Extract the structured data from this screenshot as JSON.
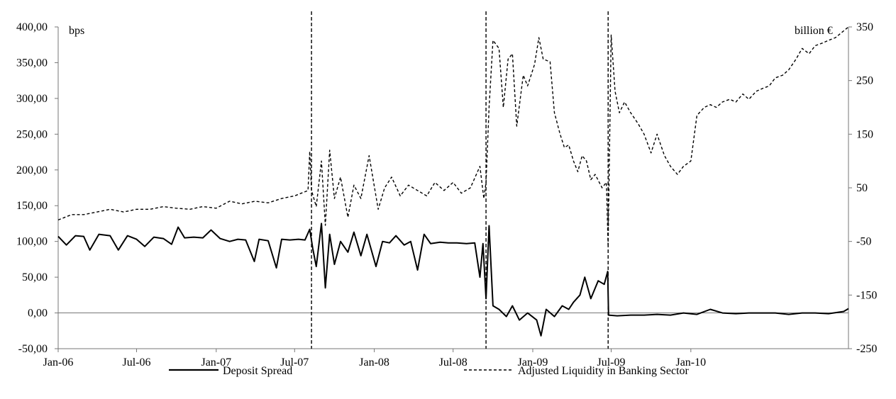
{
  "chart_data": {
    "type": "line",
    "left_axis": {
      "unit_label": "bps",
      "ylim": [
        -50,
        400
      ],
      "ticks": [
        "-50,00",
        "0,00",
        "50,00",
        "100,00",
        "150,00",
        "200,00",
        "250,00",
        "300,00",
        "350,00",
        "400,00"
      ]
    },
    "right_axis": {
      "unit_label": "billion €",
      "ylim": [
        -250,
        350
      ],
      "ticks": [
        "-250",
        "-150",
        "-50",
        "50",
        "150",
        "250",
        "350"
      ]
    },
    "x_axis": {
      "start": "2006-01-01",
      "end": "2010-12-31",
      "tick_labels": [
        {
          "label": "Jan-06",
          "date": "2006-01-01"
        },
        {
          "label": "Jul-06",
          "date": "2006-07-01"
        },
        {
          "label": "Jan-07",
          "date": "2007-01-01"
        },
        {
          "label": "Jul-07",
          "date": "2007-07-01"
        },
        {
          "label": "Jan-08",
          "date": "2008-01-01"
        },
        {
          "label": "Jul-08",
          "date": "2008-07-01"
        },
        {
          "label": "Jan-09",
          "date": "2009-01-01"
        },
        {
          "label": "Jul-09",
          "date": "2009-07-01"
        },
        {
          "label": "Jan-10",
          "date": "2010-01-01"
        }
      ]
    },
    "vertical_markers": [
      "2007-08-09",
      "2008-09-15",
      "2009-06-24"
    ],
    "series": [
      {
        "name": "Deposit Spread",
        "axis": "left",
        "style": "solid",
        "color": "#000000",
        "points": [
          [
            "2006-01-01",
            107
          ],
          [
            "2006-01-20",
            95
          ],
          [
            "2006-02-10",
            108
          ],
          [
            "2006-03-01",
            107
          ],
          [
            "2006-03-15",
            88
          ],
          [
            "2006-04-05",
            110
          ],
          [
            "2006-05-01",
            108
          ],
          [
            "2006-05-20",
            88
          ],
          [
            "2006-06-10",
            108
          ],
          [
            "2006-07-01",
            103
          ],
          [
            "2006-07-20",
            93
          ],
          [
            "2006-08-10",
            106
          ],
          [
            "2006-09-01",
            104
          ],
          [
            "2006-09-20",
            96
          ],
          [
            "2006-10-05",
            120
          ],
          [
            "2006-10-20",
            105
          ],
          [
            "2006-11-10",
            106
          ],
          [
            "2006-12-01",
            105
          ],
          [
            "2006-12-20",
            116
          ],
          [
            "2007-01-10",
            104
          ],
          [
            "2007-02-01",
            100
          ],
          [
            "2007-02-20",
            103
          ],
          [
            "2007-03-10",
            102
          ],
          [
            "2007-03-30",
            72
          ],
          [
            "2007-04-10",
            103
          ],
          [
            "2007-05-01",
            101
          ],
          [
            "2007-05-20",
            63
          ],
          [
            "2007-06-01",
            103
          ],
          [
            "2007-06-20",
            102
          ],
          [
            "2007-07-10",
            103
          ],
          [
            "2007-07-25",
            102
          ],
          [
            "2007-08-05",
            117
          ],
          [
            "2007-08-12",
            90
          ],
          [
            "2007-08-20",
            65
          ],
          [
            "2007-09-01",
            125
          ],
          [
            "2007-09-10",
            35
          ],
          [
            "2007-09-20",
            110
          ],
          [
            "2007-10-01",
            68
          ],
          [
            "2007-10-15",
            100
          ],
          [
            "2007-11-01",
            85
          ],
          [
            "2007-11-15",
            113
          ],
          [
            "2007-12-01",
            80
          ],
          [
            "2007-12-15",
            110
          ],
          [
            "2008-01-05",
            65
          ],
          [
            "2008-01-20",
            100
          ],
          [
            "2008-02-05",
            98
          ],
          [
            "2008-02-20",
            108
          ],
          [
            "2008-03-10",
            95
          ],
          [
            "2008-03-25",
            100
          ],
          [
            "2008-04-10",
            60
          ],
          [
            "2008-04-25",
            110
          ],
          [
            "2008-05-10",
            97
          ],
          [
            "2008-06-01",
            99
          ],
          [
            "2008-06-20",
            98
          ],
          [
            "2008-07-10",
            98
          ],
          [
            "2008-08-01",
            97
          ],
          [
            "2008-08-20",
            98
          ],
          [
            "2008-09-01",
            50
          ],
          [
            "2008-09-08",
            97
          ],
          [
            "2008-09-15",
            20
          ],
          [
            "2008-09-22",
            122
          ],
          [
            "2008-10-01",
            10
          ],
          [
            "2008-10-15",
            5
          ],
          [
            "2008-11-01",
            -5
          ],
          [
            "2008-11-15",
            10
          ],
          [
            "2008-12-01",
            -10
          ],
          [
            "2008-12-20",
            0
          ],
          [
            "2009-01-10",
            -10
          ],
          [
            "2009-01-20",
            -32
          ],
          [
            "2009-02-01",
            5
          ],
          [
            "2009-02-20",
            -5
          ],
          [
            "2009-03-10",
            10
          ],
          [
            "2009-03-25",
            5
          ],
          [
            "2009-04-05",
            15
          ],
          [
            "2009-04-20",
            25
          ],
          [
            "2009-05-01",
            50
          ],
          [
            "2009-05-15",
            20
          ],
          [
            "2009-06-01",
            45
          ],
          [
            "2009-06-15",
            40
          ],
          [
            "2009-06-23",
            58
          ],
          [
            "2009-06-25",
            -3
          ],
          [
            "2009-07-15",
            -4
          ],
          [
            "2009-08-15",
            -3
          ],
          [
            "2009-09-15",
            -3
          ],
          [
            "2009-10-15",
            -2
          ],
          [
            "2009-11-15",
            -3
          ],
          [
            "2009-12-15",
            0
          ],
          [
            "2010-01-15",
            -2
          ],
          [
            "2010-02-15",
            5
          ],
          [
            "2010-03-15",
            0
          ],
          [
            "2010-04-15",
            -1
          ],
          [
            "2010-05-15",
            0
          ],
          [
            "2010-06-15",
            0
          ],
          [
            "2010-07-15",
            0
          ],
          [
            "2010-08-15",
            -2
          ],
          [
            "2010-09-15",
            0
          ],
          [
            "2010-10-15",
            0
          ],
          [
            "2010-11-15",
            -1
          ],
          [
            "2010-12-20",
            2
          ],
          [
            "2010-12-31",
            6
          ]
        ]
      },
      {
        "name": "Adjusted Liquidity in Banking Sector",
        "axis": "right",
        "style": "dashed",
        "color": "#000000",
        "points": [
          [
            "2006-01-01",
            -10
          ],
          [
            "2006-02-01",
            0
          ],
          [
            "2006-03-01",
            0
          ],
          [
            "2006-04-01",
            5
          ],
          [
            "2006-05-01",
            10
          ],
          [
            "2006-06-01",
            5
          ],
          [
            "2006-07-01",
            10
          ],
          [
            "2006-08-01",
            10
          ],
          [
            "2006-09-01",
            15
          ],
          [
            "2006-10-01",
            12
          ],
          [
            "2006-11-01",
            10
          ],
          [
            "2006-12-01",
            15
          ],
          [
            "2007-01-01",
            12
          ],
          [
            "2007-02-01",
            25
          ],
          [
            "2007-03-01",
            20
          ],
          [
            "2007-04-01",
            25
          ],
          [
            "2007-05-01",
            22
          ],
          [
            "2007-06-01",
            30
          ],
          [
            "2007-07-01",
            35
          ],
          [
            "2007-08-01",
            45
          ],
          [
            "2007-08-05",
            118
          ],
          [
            "2007-08-09",
            45
          ],
          [
            "2007-08-20",
            15
          ],
          [
            "2007-09-01",
            100
          ],
          [
            "2007-09-10",
            -20
          ],
          [
            "2007-09-20",
            120
          ],
          [
            "2007-10-01",
            30
          ],
          [
            "2007-10-15",
            70
          ],
          [
            "2007-11-01",
            -5
          ],
          [
            "2007-11-15",
            55
          ],
          [
            "2007-12-01",
            30
          ],
          [
            "2007-12-20",
            110
          ],
          [
            "2008-01-10",
            10
          ],
          [
            "2008-01-25",
            50
          ],
          [
            "2008-02-10",
            70
          ],
          [
            "2008-03-01",
            35
          ],
          [
            "2008-03-20",
            55
          ],
          [
            "2008-04-10",
            45
          ],
          [
            "2008-05-01",
            35
          ],
          [
            "2008-05-20",
            60
          ],
          [
            "2008-06-10",
            45
          ],
          [
            "2008-07-01",
            60
          ],
          [
            "2008-07-20",
            40
          ],
          [
            "2008-08-10",
            50
          ],
          [
            "2008-09-01",
            90
          ],
          [
            "2008-09-10",
            30
          ],
          [
            "2008-09-15",
            60
          ],
          [
            "2008-09-22",
            200
          ],
          [
            "2008-10-01",
            325
          ],
          [
            "2008-10-15",
            310
          ],
          [
            "2008-10-25",
            200
          ],
          [
            "2008-11-05",
            290
          ],
          [
            "2008-11-15",
            300
          ],
          [
            "2008-11-25",
            165
          ],
          [
            "2008-12-10",
            260
          ],
          [
            "2008-12-20",
            240
          ],
          [
            "2009-01-05",
            280
          ],
          [
            "2009-01-15",
            330
          ],
          [
            "2009-01-25",
            290
          ],
          [
            "2009-02-10",
            285
          ],
          [
            "2009-02-20",
            190
          ],
          [
            "2009-03-05",
            150
          ],
          [
            "2009-03-15",
            125
          ],
          [
            "2009-03-25",
            130
          ],
          [
            "2009-04-05",
            100
          ],
          [
            "2009-04-15",
            80
          ],
          [
            "2009-04-25",
            110
          ],
          [
            "2009-05-05",
            100
          ],
          [
            "2009-05-15",
            65
          ],
          [
            "2009-05-25",
            75
          ],
          [
            "2009-06-10",
            50
          ],
          [
            "2009-06-20",
            60
          ],
          [
            "2009-06-24",
            -60
          ],
          [
            "2009-07-01",
            335
          ],
          [
            "2009-07-10",
            230
          ],
          [
            "2009-07-20",
            190
          ],
          [
            "2009-08-01",
            210
          ],
          [
            "2009-08-15",
            190
          ],
          [
            "2009-09-01",
            170
          ],
          [
            "2009-09-15",
            150
          ],
          [
            "2009-10-01",
            115
          ],
          [
            "2009-10-15",
            150
          ],
          [
            "2009-11-01",
            110
          ],
          [
            "2009-11-15",
            90
          ],
          [
            "2009-12-01",
            75
          ],
          [
            "2009-12-15",
            90
          ],
          [
            "2010-01-01",
            100
          ],
          [
            "2010-01-15",
            185
          ],
          [
            "2010-02-01",
            200
          ],
          [
            "2010-02-15",
            205
          ],
          [
            "2010-03-01",
            200
          ],
          [
            "2010-03-15",
            210
          ],
          [
            "2010-04-01",
            215
          ],
          [
            "2010-04-15",
            210
          ],
          [
            "2010-05-01",
            225
          ],
          [
            "2010-05-15",
            215
          ],
          [
            "2010-06-01",
            230
          ],
          [
            "2010-06-15",
            235
          ],
          [
            "2010-07-01",
            240
          ],
          [
            "2010-07-15",
            255
          ],
          [
            "2010-08-01",
            260
          ],
          [
            "2010-08-15",
            270
          ],
          [
            "2010-09-01",
            290
          ],
          [
            "2010-09-15",
            310
          ],
          [
            "2010-10-01",
            300
          ],
          [
            "2010-10-15",
            315
          ],
          [
            "2010-11-01",
            320
          ],
          [
            "2010-11-15",
            325
          ],
          [
            "2010-12-01",
            330
          ],
          [
            "2010-12-31",
            350
          ]
        ]
      }
    ],
    "grid": false,
    "legend_position": "bottom"
  }
}
